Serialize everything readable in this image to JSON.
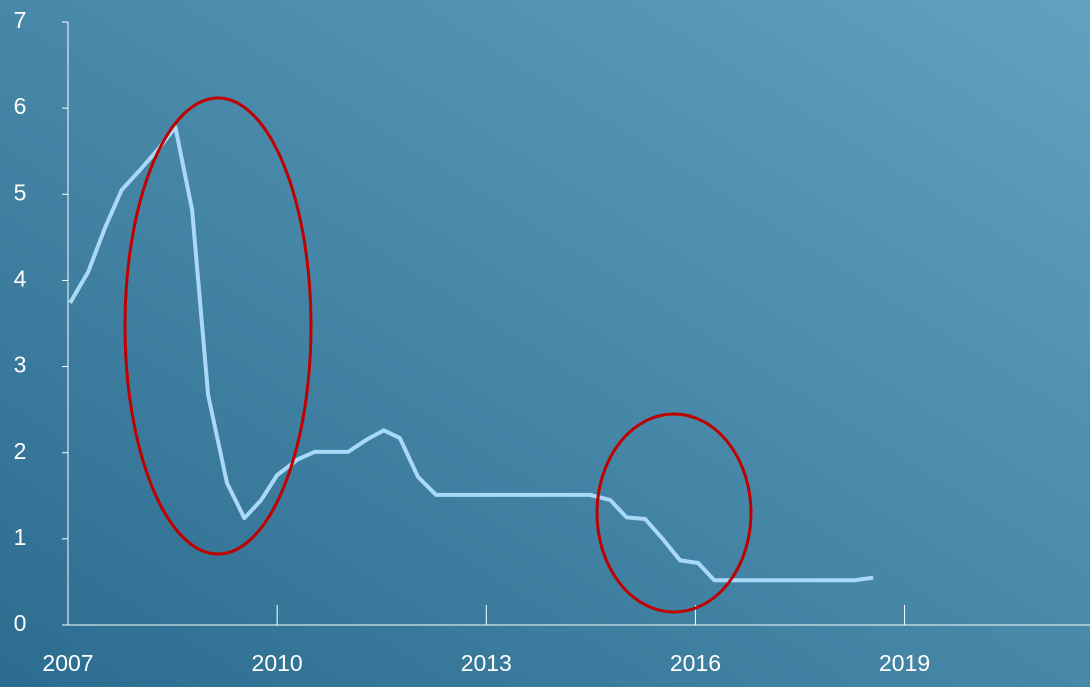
{
  "chart_data": {
    "type": "line",
    "x": [
      2007.03,
      2007.29,
      2007.53,
      2007.77,
      2008.03,
      2008.29,
      2008.54,
      2008.78,
      2009.01,
      2009.28,
      2009.53,
      2009.77,
      2010.0,
      2010.29,
      2010.54,
      2011.02,
      2011.28,
      2011.53,
      2011.76,
      2012.02,
      2012.28,
      2014.49,
      2014.78,
      2015.01,
      2015.28,
      2015.54,
      2015.78,
      2016.04,
      2016.27,
      2018.29,
      2018.55
    ],
    "series": [
      {
        "color": "#a9d9f7",
        "values": [
          3.74,
          4.1,
          4.61,
          5.05,
          5.28,
          5.52,
          5.78,
          4.82,
          2.67,
          1.65,
          1.24,
          1.45,
          1.74,
          1.92,
          2.01,
          2.01,
          2.15,
          2.26,
          2.17,
          1.72,
          1.51,
          1.51,
          1.45,
          1.25,
          1.23,
          0.99,
          0.75,
          0.72,
          0.52,
          0.52,
          0.55
        ]
      }
    ],
    "xlim": [
      2007,
      2021.66
    ],
    "xticks": [
      2007,
      2010,
      2013,
      2016,
      2019
    ],
    "ylim": [
      0,
      7
    ],
    "yticks": [
      0,
      1,
      2,
      3,
      4,
      5,
      6,
      7
    ]
  }
}
